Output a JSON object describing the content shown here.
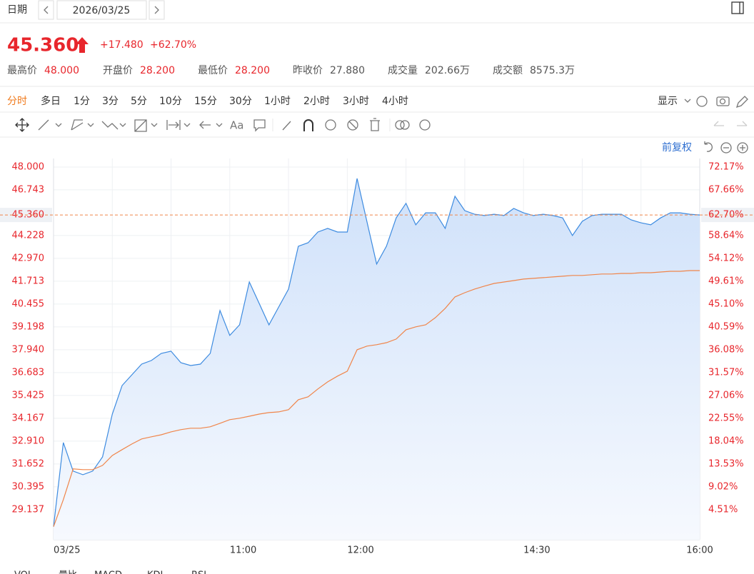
{
  "header": {
    "date_label": "日期",
    "date": "2026/03/25"
  },
  "quote": {
    "price": "45.360",
    "change": "+17.480",
    "change_pct": "+62.70%",
    "stats": [
      {
        "label": "最高价",
        "value": "48.000",
        "color": "#e8262c"
      },
      {
        "label": "开盘价",
        "value": "28.200",
        "color": "#e8262c"
      },
      {
        "label": "最低价",
        "value": "28.200",
        "color": "#e8262c"
      },
      {
        "label": "昨收价",
        "value": "27.880",
        "color": "#555555"
      },
      {
        "label": "成交量",
        "value": "202.66万",
        "color": "#555555"
      },
      {
        "label": "成交额",
        "value": "8575.3万",
        "color": "#555555"
      }
    ]
  },
  "tabs": [
    "分时",
    "多日",
    "1分",
    "3分",
    "5分",
    "10分",
    "15分",
    "30分",
    "1小时",
    "2小时",
    "3小时",
    "4小时"
  ],
  "active_tab": 0,
  "display": "显示",
  "font_tool": "Aa",
  "adjust": "前复权",
  "indicators": [
    "VOL",
    "量比",
    "MACD",
    "KDJ",
    "RSI"
  ],
  "chart_data": {
    "type": "line",
    "x": [
      "09:30",
      "09:35",
      "09:40",
      "09:45",
      "09:50",
      "09:55",
      "10:00",
      "10:05",
      "10:10",
      "10:15",
      "10:20",
      "10:25",
      "10:30",
      "10:35",
      "10:40",
      "10:45",
      "10:50",
      "10:55",
      "11:00",
      "11:05",
      "11:10",
      "11:15",
      "11:20",
      "11:25",
      "11:30",
      "11:35",
      "11:40",
      "11:45",
      "11:50",
      "11:55",
      "12:00",
      "13:05",
      "13:10",
      "13:15",
      "13:20",
      "13:25",
      "13:30",
      "13:35",
      "13:40",
      "13:45",
      "13:50",
      "13:55",
      "14:00",
      "14:05",
      "14:10",
      "14:15",
      "14:20",
      "14:25",
      "14:30",
      "14:35",
      "14:40",
      "14:45",
      "14:50",
      "14:55",
      "15:00",
      "15:05",
      "15:10",
      "15:15",
      "15:20",
      "15:25",
      "15:30",
      "15:35",
      "15:40",
      "15:45",
      "15:50",
      "15:55",
      "16:00"
    ],
    "series": [
      {
        "color": "#3d8be0",
        "area": true,
        "values": [
          28.2,
          32.83,
          31.26,
          31.06,
          31.26,
          32.04,
          34.4,
          35.97,
          36.56,
          37.15,
          37.35,
          37.74,
          37.86,
          37.23,
          37.07,
          37.15,
          37.74,
          40.1,
          38.73,
          39.31,
          41.67,
          40.49,
          39.31,
          40.3,
          41.28,
          43.64,
          43.83,
          44.42,
          44.62,
          44.42,
          44.42,
          47.37,
          45.01,
          42.66,
          43.64,
          45.2,
          46.0,
          44.82,
          45.48,
          45.48,
          44.62,
          46.39,
          45.6,
          45.4,
          45.33,
          45.4,
          45.33,
          45.72,
          45.48,
          45.33,
          45.4,
          45.33,
          45.2,
          44.23,
          45.01,
          45.33,
          45.4,
          45.4,
          45.4,
          45.09,
          44.93,
          44.82,
          45.2,
          45.48,
          45.48,
          45.4,
          45.36
        ]
      },
      {
        "color": "#f0854a",
        "area": false,
        "values": [
          28.2,
          29.69,
          31.38,
          31.34,
          31.34,
          31.57,
          32.12,
          32.44,
          32.75,
          33.03,
          33.15,
          33.26,
          33.42,
          33.54,
          33.62,
          33.62,
          33.7,
          33.89,
          34.09,
          34.17,
          34.28,
          34.4,
          34.48,
          34.52,
          34.64,
          35.19,
          35.35,
          35.78,
          36.17,
          36.49,
          36.76,
          37.94,
          38.14,
          38.22,
          38.33,
          38.53,
          39.04,
          39.2,
          39.31,
          39.71,
          40.22,
          40.85,
          41.08,
          41.28,
          41.44,
          41.59,
          41.67,
          41.75,
          41.83,
          41.87,
          41.91,
          41.95,
          41.99,
          42.03,
          42.03,
          42.07,
          42.11,
          42.11,
          42.14,
          42.14,
          42.18,
          42.18,
          42.22,
          42.26,
          42.26,
          42.3,
          42.3
        ]
      }
    ],
    "ylim": [
      27.48,
      48.47
    ],
    "yticks": [
      {
        "value": 48.0,
        "label": "48.000"
      },
      {
        "value": 46.743,
        "label": "46.743"
      },
      {
        "value": 45.36,
        "label": "45.360"
      },
      {
        "value": 44.228,
        "label": "44.228"
      },
      {
        "value": 42.97,
        "label": "42.970"
      },
      {
        "value": 41.713,
        "label": "41.713"
      },
      {
        "value": 40.455,
        "label": "40.455"
      },
      {
        "value": 39.198,
        "label": "39.198"
      },
      {
        "value": 37.94,
        "label": "37.940"
      },
      {
        "value": 36.683,
        "label": "36.683"
      },
      {
        "value": 35.425,
        "label": "35.425"
      },
      {
        "value": 34.167,
        "label": "34.167"
      },
      {
        "value": 32.91,
        "label": "32.910"
      },
      {
        "value": 31.652,
        "label": "31.652"
      },
      {
        "value": 30.395,
        "label": "30.395"
      },
      {
        "value": 29.137,
        "label": "29.137"
      }
    ],
    "y2lim": [
      -1.435,
      73.85
    ],
    "y2ticks": [
      {
        "value": 72.17,
        "label": "72.17%"
      },
      {
        "value": 67.66,
        "label": "67.66%"
      },
      {
        "value": 62.7,
        "label": "62.70%"
      },
      {
        "value": 58.64,
        "label": "58.64%"
      },
      {
        "value": 54.12,
        "label": "54.12%"
      },
      {
        "value": 49.61,
        "label": "49.61%"
      },
      {
        "value": 45.1,
        "label": "45.10%"
      },
      {
        "value": 40.59,
        "label": "40.59%"
      },
      {
        "value": 36.08,
        "label": "36.08%"
      },
      {
        "value": 31.57,
        "label": "31.57%"
      },
      {
        "value": 27.06,
        "label": "27.06%"
      },
      {
        "value": 22.55,
        "label": "22.55%"
      },
      {
        "value": 18.04,
        "label": "18.04%"
      },
      {
        "value": 13.53,
        "label": "13.53%"
      },
      {
        "value": 9.02,
        "label": "9.02%"
      },
      {
        "value": 4.51,
        "label": "4.51%"
      }
    ],
    "xticks": [
      {
        "value": "09:30",
        "label": "03/25"
      },
      "11:00",
      "12:00",
      "14:30",
      "16:00"
    ],
    "grid": true,
    "current_line": {
      "value": 45.36,
      "color": "#f0854a"
    },
    "tick_color": "#e8262c"
  }
}
